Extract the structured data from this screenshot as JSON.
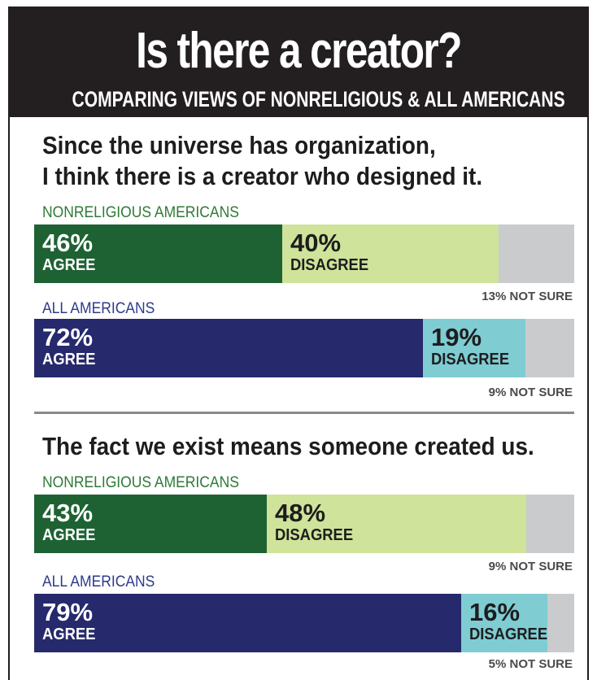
{
  "header": {
    "title": "Is there a creator?",
    "subtitle": "COMPARING VIEWS OF NONRELIGIOUS & ALL AMERICANS"
  },
  "colors": {
    "nonreligious_agree": "#1e6233",
    "nonreligious_disagree": "#cfe39a",
    "all_agree": "#26296b",
    "all_disagree": "#7fccd2",
    "not_sure": "#cacbcd"
  },
  "chart_data": [
    {
      "type": "bar",
      "title": "Since the universe has organization, I think there is a creator who designed it.",
      "title_lines": [
        "Since the universe has organization,",
        "I think there is a creator who designed it."
      ],
      "categories": [
        "NONRELIGIOUS AMERICANS",
        "ALL AMERICANS"
      ],
      "series": [
        {
          "name": "AGREE",
          "values": [
            46,
            72
          ]
        },
        {
          "name": "DISAGREE",
          "values": [
            40,
            19
          ]
        },
        {
          "name": "NOT SURE",
          "values": [
            13,
            9
          ]
        }
      ],
      "rows": [
        {
          "group": "NONRELIGIOUS AMERICANS",
          "agree": 46,
          "disagree": 40,
          "not_sure": 13,
          "agree_text": "46%",
          "agree_label": "AGREE",
          "disagree_text": "40%",
          "disagree_label": "DISAGREE",
          "not_sure_text": "13% NOT SURE"
        },
        {
          "group": "ALL AMERICANS",
          "agree": 72,
          "disagree": 19,
          "not_sure": 9,
          "agree_text": "72%",
          "agree_label": "AGREE",
          "disagree_text": "19%",
          "disagree_label": "DISAGREE",
          "not_sure_text": "9% NOT SURE"
        }
      ]
    },
    {
      "type": "bar",
      "title": "The fact we exist means someone created us.",
      "title_lines": [
        "The fact we exist means someone created us."
      ],
      "categories": [
        "NONRELIGIOUS AMERICANS",
        "ALL AMERICANS"
      ],
      "series": [
        {
          "name": "AGREE",
          "values": [
            43,
            79
          ]
        },
        {
          "name": "DISAGREE",
          "values": [
            48,
            16
          ]
        },
        {
          "name": "NOT SURE",
          "values": [
            9,
            5
          ]
        }
      ],
      "rows": [
        {
          "group": "NONRELIGIOUS AMERICANS",
          "agree": 43,
          "disagree": 48,
          "not_sure": 9,
          "agree_text": "43%",
          "agree_label": "AGREE",
          "disagree_text": "48%",
          "disagree_label": "DISAGREE",
          "not_sure_text": "9% NOT SURE"
        },
        {
          "group": "ALL AMERICANS",
          "agree": 79,
          "disagree": 16,
          "not_sure": 5,
          "agree_text": "79%",
          "agree_label": "AGREE",
          "disagree_text": "16%",
          "disagree_label": "DISAGREE",
          "not_sure_text": "5% NOT SURE"
        }
      ]
    }
  ]
}
